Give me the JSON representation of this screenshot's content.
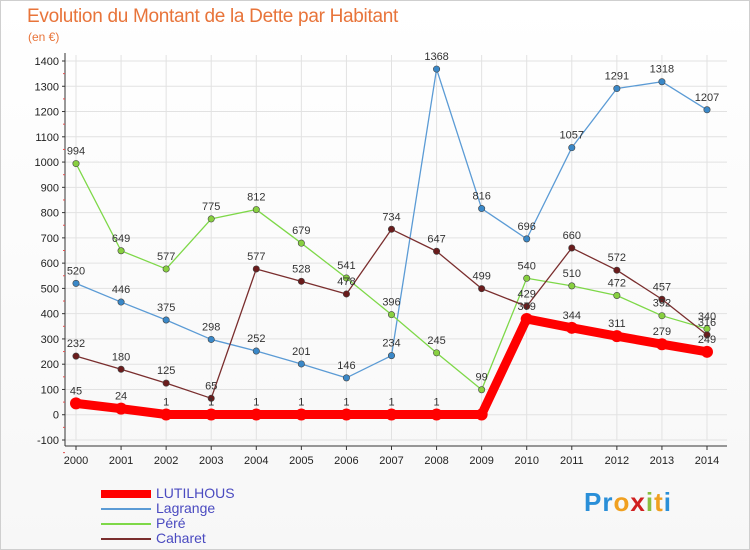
{
  "title": "Evolution du Montant de la Dette par Habitant",
  "unit": "(en €)",
  "brand": {
    "letters": [
      "P",
      "r",
      "o",
      "x",
      "i",
      "t",
      "i"
    ],
    "colors": [
      "#2a8fd8",
      "#2a8fd8",
      "#f0a020",
      "#d02020",
      "#8ac040",
      "#f0a020",
      "#2a8fd8"
    ]
  },
  "chart_data": {
    "type": "line",
    "x": [
      "2000",
      "2001",
      "2002",
      "2003",
      "2004",
      "2005",
      "2006",
      "2007",
      "2008",
      "2009",
      "2010",
      "2011",
      "2012",
      "2013",
      "2014"
    ],
    "ylim": [
      -100,
      1400
    ],
    "yticks": [
      "1400",
      "1300",
      "1200",
      "1100",
      "1000",
      "900",
      "800",
      "700",
      "600",
      "500",
      "400",
      "300",
      "200",
      "100",
      "0",
      "-100"
    ],
    "grid": true,
    "legend_position": "bottom-left",
    "series": [
      {
        "name": "LUTILHOUS",
        "color": "#ff0000",
        "values": [
          45,
          24,
          1,
          1,
          1,
          1,
          1,
          1,
          1,
          1,
          379,
          344,
          311,
          279,
          249
        ],
        "labels": [
          "45",
          "24",
          "1",
          "1",
          "1",
          "1",
          "1",
          "1",
          "1",
          "",
          "379",
          "344",
          "311",
          "279",
          "249"
        ]
      },
      {
        "name": "Lagrange",
        "color": "#5b9bd5",
        "values": [
          520,
          446,
          375,
          298,
          252,
          201,
          146,
          234,
          1368,
          816,
          696,
          1057,
          1291,
          1318,
          1207
        ],
        "labels": [
          "520",
          "446",
          "375",
          "298",
          "252",
          "201",
          "146",
          "234",
          "1368",
          "816",
          "696",
          "1057",
          "1291",
          "1318",
          "1207"
        ]
      },
      {
        "name": "Péré",
        "color": "#7ed848",
        "values": [
          994,
          649,
          577,
          775,
          812,
          679,
          541,
          396,
          245,
          99,
          540,
          510,
          472,
          392,
          340
        ],
        "labels": [
          "994",
          "649",
          "577",
          "775",
          "812",
          "679",
          "541",
          "396",
          "245",
          "99",
          "540",
          "510",
          "472",
          "392",
          "340"
        ]
      },
      {
        "name": "Caharet",
        "color": "#7a2e2e",
        "values": [
          232,
          180,
          125,
          65,
          577,
          528,
          478,
          734,
          647,
          499,
          429,
          660,
          572,
          457,
          316
        ],
        "labels": [
          "232",
          "180",
          "125",
          "65",
          "577",
          "528",
          "478",
          "734",
          "647",
          "499",
          "429",
          "660",
          "572",
          "457",
          "316"
        ]
      }
    ]
  }
}
